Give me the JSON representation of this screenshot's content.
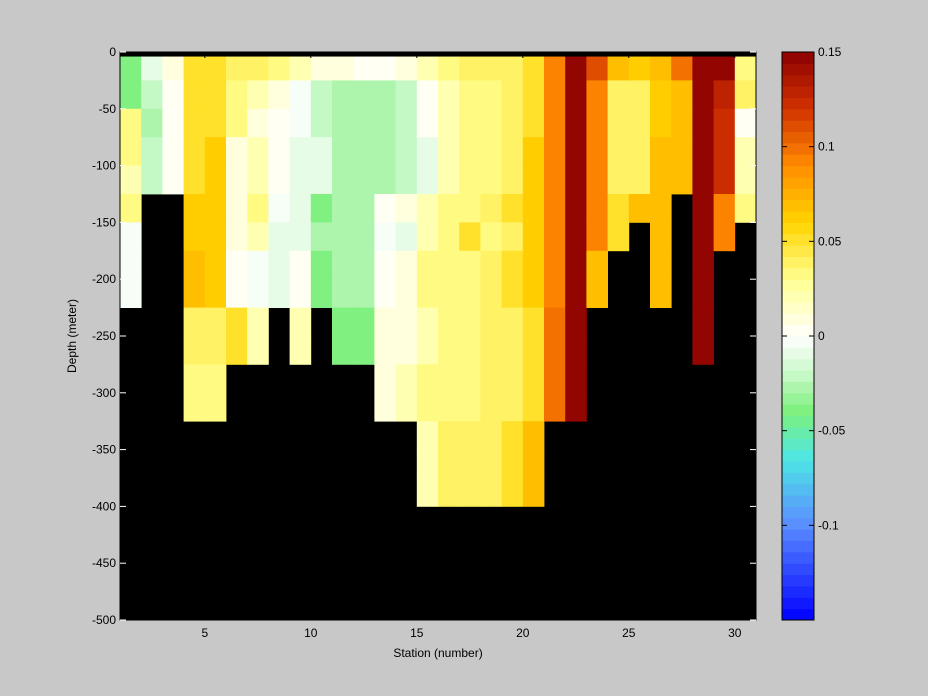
{
  "chart_data": {
    "type": "heatmap",
    "title": "",
    "xlabel": "Station (number)",
    "ylabel": "Depth (meter)",
    "xlim": [
      1,
      31
    ],
    "ylim": [
      -500,
      0
    ],
    "xticks": [
      5,
      10,
      15,
      20,
      25,
      30
    ],
    "yticks": [
      0,
      -50,
      -100,
      -150,
      -200,
      -250,
      -300,
      -350,
      -400,
      -450,
      -500
    ],
    "x_edges": [
      1,
      2,
      3,
      4,
      5,
      6,
      7,
      8,
      9,
      10,
      11,
      12,
      13,
      14,
      15,
      16,
      17,
      18,
      19,
      20,
      21,
      22,
      23,
      24,
      25,
      26,
      27,
      28,
      29,
      30,
      31
    ],
    "y_edges": [
      0,
      -4,
      -25,
      -50,
      -75,
      -100,
      -125,
      -150,
      -175,
      -200,
      -225,
      -250,
      -275,
      -300,
      -325,
      -350,
      -375,
      -400
    ],
    "below_data_color": "#000000",
    "surface_band_color": "#000000",
    "bottom_depths": [
      -200,
      -100,
      -100,
      -300,
      -300,
      -250,
      -250,
      -200,
      -250,
      -200,
      -250,
      -250,
      -300,
      -300,
      -400,
      -400,
      -400,
      -400,
      -400,
      -400,
      -300,
      -300,
      -200,
      -200,
      -150,
      -200,
      -125,
      -100,
      -250,
      -150,
      -125
    ],
    "values": [
      [
        -0.04,
        -0.01,
        0.01,
        0.05,
        0.05,
        0.04,
        0.04,
        0.03,
        0.02,
        0.01,
        0.01,
        0.005,
        0.005,
        0.01,
        0.02,
        0.03,
        0.04,
        0.04,
        0.04,
        0.05,
        0.11,
        0.15,
        0.11,
        0.07,
        0.06,
        0.07,
        0.1,
        0.15,
        0.15,
        0.03
      ],
      [
        -0.04,
        -0.01,
        0.01,
        0.05,
        0.05,
        0.04,
        0.04,
        0.03,
        0.02,
        0.01,
        0.01,
        0.005,
        0.005,
        0.01,
        0.02,
        0.03,
        0.04,
        0.04,
        0.04,
        0.05,
        0.09,
        0.15,
        0.11,
        0.07,
        0.06,
        0.07,
        0.1,
        0.15,
        0.15,
        0.03
      ],
      [
        -0.04,
        -0.02,
        0.005,
        0.05,
        0.05,
        0.03,
        0.02,
        0.01,
        -0.005,
        -0.02,
        -0.03,
        -0.03,
        -0.03,
        -0.02,
        0.005,
        0.02,
        0.03,
        0.03,
        0.04,
        0.05,
        0.09,
        0.15,
        0.09,
        0.04,
        0.04,
        0.06,
        0.07,
        0.15,
        0.13,
        0.04
      ],
      [
        0.03,
        -0.03,
        0.0,
        0.05,
        0.05,
        0.03,
        0.01,
        0.005,
        -0.005,
        -0.02,
        -0.03,
        -0.03,
        -0.03,
        -0.02,
        0.005,
        0.02,
        0.03,
        0.03,
        0.04,
        0.05,
        0.09,
        0.15,
        0.09,
        0.04,
        0.04,
        0.06,
        0.07,
        0.15,
        0.12,
        0.0
      ],
      [
        0.03,
        -0.02,
        0.0,
        0.05,
        0.06,
        0.01,
        0.02,
        0.0,
        -0.01,
        -0.01,
        -0.03,
        -0.03,
        -0.03,
        -0.02,
        -0.01,
        0.02,
        0.03,
        0.03,
        0.04,
        0.06,
        0.09,
        0.15,
        0.09,
        0.04,
        0.04,
        0.07,
        0.07,
        0.15,
        0.12,
        0.02
      ],
      [
        0.02,
        -0.02,
        0.0,
        0.05,
        0.06,
        0.01,
        0.02,
        0.0,
        -0.01,
        -0.01,
        -0.03,
        -0.03,
        -0.03,
        -0.02,
        -0.01,
        0.02,
        0.03,
        0.03,
        0.04,
        0.06,
        0.09,
        0.15,
        0.09,
        0.04,
        0.04,
        0.07,
        0.07,
        0.15,
        0.12,
        0.02
      ],
      [
        0.03,
        null,
        null,
        0.06,
        0.06,
        0.01,
        0.03,
        -0.005,
        -0.01,
        -0.04,
        -0.03,
        -0.03,
        0.005,
        0.01,
        0.02,
        0.03,
        0.03,
        0.04,
        0.05,
        0.06,
        0.09,
        0.15,
        0.09,
        0.05,
        0.07,
        0.07,
        null,
        0.15,
        0.09,
        0.03
      ],
      [
        -0.005,
        null,
        null,
        0.06,
        0.06,
        0.01,
        0.02,
        -0.01,
        -0.01,
        -0.03,
        -0.03,
        -0.03,
        -0.005,
        -0.01,
        0.02,
        0.03,
        0.05,
        0.03,
        0.04,
        0.06,
        0.09,
        0.15,
        0.09,
        0.05,
        null,
        0.07,
        null,
        0.15,
        0.09,
        null
      ],
      [
        -0.005,
        null,
        null,
        0.07,
        0.06,
        0.0,
        -0.005,
        -0.01,
        0.0,
        -0.04,
        -0.03,
        -0.03,
        0.005,
        0.01,
        0.03,
        0.03,
        0.03,
        0.04,
        0.05,
        0.06,
        0.09,
        0.15,
        0.07,
        null,
        null,
        0.07,
        null,
        0.15,
        null,
        null
      ],
      [
        -0.005,
        null,
        null,
        0.07,
        0.06,
        0.0,
        -0.005,
        -0.01,
        0.0,
        -0.04,
        -0.03,
        -0.03,
        0.005,
        0.01,
        0.03,
        0.03,
        0.03,
        0.04,
        0.05,
        0.06,
        0.09,
        0.15,
        0.07,
        null,
        null,
        0.07,
        null,
        0.15,
        null,
        null
      ],
      [
        null,
        null,
        null,
        0.04,
        0.04,
        0.05,
        0.02,
        null,
        0.02,
        null,
        -0.04,
        -0.04,
        0.01,
        0.01,
        0.02,
        0.03,
        0.03,
        0.04,
        0.04,
        0.05,
        0.1,
        0.15,
        null,
        null,
        null,
        null,
        null,
        0.15,
        null,
        null
      ],
      [
        null,
        null,
        null,
        0.04,
        0.04,
        0.05,
        0.02,
        null,
        0.02,
        null,
        -0.04,
        -0.04,
        0.01,
        0.01,
        0.02,
        0.03,
        0.03,
        0.04,
        0.04,
        0.05,
        0.1,
        0.15,
        null,
        null,
        null,
        null,
        null,
        0.15,
        null,
        null
      ],
      [
        null,
        null,
        null,
        0.03,
        0.03,
        null,
        null,
        null,
        null,
        null,
        null,
        null,
        0.01,
        0.02,
        0.03,
        0.03,
        0.03,
        0.04,
        0.04,
        0.05,
        0.1,
        0.15,
        null,
        null,
        null,
        null,
        null,
        null,
        null,
        null
      ],
      [
        null,
        null,
        null,
        0.03,
        0.03,
        null,
        null,
        null,
        null,
        null,
        null,
        null,
        0.01,
        0.02,
        0.03,
        0.03,
        0.03,
        0.04,
        0.04,
        0.05,
        0.1,
        0.15,
        null,
        null,
        null,
        null,
        null,
        null,
        null,
        null
      ],
      [
        null,
        null,
        null,
        null,
        null,
        null,
        null,
        null,
        null,
        null,
        null,
        null,
        null,
        null,
        0.02,
        0.04,
        0.04,
        0.04,
        0.05,
        0.07,
        null,
        null,
        null,
        null,
        null,
        null,
        null,
        null,
        null,
        null
      ],
      [
        null,
        null,
        null,
        null,
        null,
        null,
        null,
        null,
        null,
        null,
        null,
        null,
        null,
        null,
        0.02,
        0.04,
        0.04,
        0.04,
        0.05,
        0.07,
        null,
        null,
        null,
        null,
        null,
        null,
        null,
        null,
        null,
        null
      ],
      [
        null,
        null,
        null,
        null,
        null,
        null,
        null,
        null,
        null,
        null,
        null,
        null,
        null,
        null,
        0.02,
        0.04,
        0.04,
        0.04,
        0.05,
        0.07,
        null,
        null,
        null,
        null,
        null,
        null,
        null,
        null,
        null,
        null
      ]
    ],
    "colorbar": {
      "clim": [
        -0.15,
        0.15
      ],
      "ticks": [
        0.15,
        0.1,
        0.05,
        0,
        -0.05,
        -0.1
      ],
      "tick_labels": [
        "0.15",
        "0.1",
        "0.05",
        "0",
        "-0.05",
        "-0.1"
      ],
      "colormap_stops": [
        {
          "v": -0.15,
          "color": "#0000ff"
        },
        {
          "v": -0.1,
          "color": "#5a8cff"
        },
        {
          "v": -0.065,
          "color": "#4ee6e6"
        },
        {
          "v": -0.04,
          "color": "#7cf07c"
        },
        {
          "v": -0.02,
          "color": "#c8f8c8"
        },
        {
          "v": 0.0,
          "color": "#ffffff"
        },
        {
          "v": 0.03,
          "color": "#ffff90"
        },
        {
          "v": 0.06,
          "color": "#ffd400"
        },
        {
          "v": 0.09,
          "color": "#ff8c00"
        },
        {
          "v": 0.12,
          "color": "#d23200"
        },
        {
          "v": 0.15,
          "color": "#8c0000"
        }
      ],
      "levels": 50
    }
  }
}
